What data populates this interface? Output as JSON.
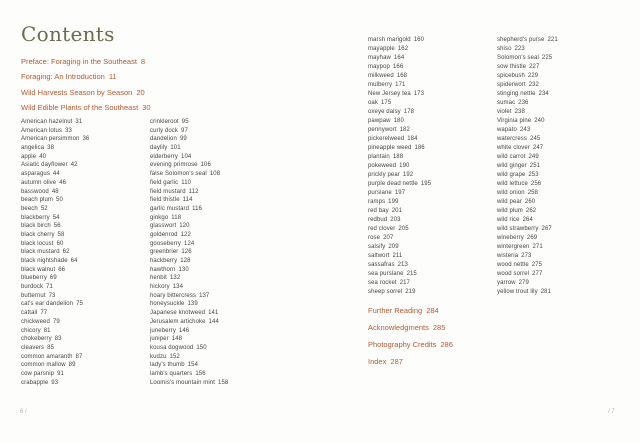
{
  "header": {
    "title": "Contents"
  },
  "front_sections": [
    {
      "label": "Preface: Foraging in the Southeast",
      "page": "8"
    },
    {
      "label": "Foraging: An Introduction",
      "page": "11"
    },
    {
      "label": "Wild Harvests Season by Season",
      "page": "20"
    },
    {
      "label": "Wild Edible Plants of the Southeast",
      "page": "30"
    }
  ],
  "columns": [
    [
      {
        "name": "American hazelnut",
        "page": "31"
      },
      {
        "name": "American lotus",
        "page": "33"
      },
      {
        "name": "American persimmon",
        "page": "36"
      },
      {
        "name": "angelica",
        "page": "38"
      },
      {
        "name": "apple",
        "page": "40"
      },
      {
        "name": "Asiatic dayflower",
        "page": "42"
      },
      {
        "name": "asparagus",
        "page": "44"
      },
      {
        "name": "autumn olive",
        "page": "46"
      },
      {
        "name": "basswood",
        "page": "48"
      },
      {
        "name": "beach plum",
        "page": "50"
      },
      {
        "name": "beech",
        "page": "52"
      },
      {
        "name": "blackberry",
        "page": "54"
      },
      {
        "name": "black birch",
        "page": "56"
      },
      {
        "name": "black cherry",
        "page": "58"
      },
      {
        "name": "black locust",
        "page": "60"
      },
      {
        "name": "black mustard",
        "page": "62"
      },
      {
        "name": "black nightshade",
        "page": "64"
      },
      {
        "name": "black walnut",
        "page": "66"
      },
      {
        "name": "blueberry",
        "page": "69"
      },
      {
        "name": "burdock",
        "page": "71"
      },
      {
        "name": "butternut",
        "page": "73"
      },
      {
        "name": "cat's ear dandelion",
        "page": "75"
      },
      {
        "name": "cattail",
        "page": "77"
      },
      {
        "name": "chickweed",
        "page": "79"
      },
      {
        "name": "chicory",
        "page": "81"
      },
      {
        "name": "chokeberry",
        "page": "83"
      },
      {
        "name": "cleavers",
        "page": "85"
      },
      {
        "name": "common amaranth",
        "page": "87"
      },
      {
        "name": "common mallow",
        "page": "89"
      },
      {
        "name": "cow parsnip",
        "page": "91"
      },
      {
        "name": "crabapple",
        "page": "93"
      }
    ],
    [
      {
        "name": "crinkleroot",
        "page": "95"
      },
      {
        "name": "curly dock",
        "page": "97"
      },
      {
        "name": "dandelion",
        "page": "99"
      },
      {
        "name": "daylily",
        "page": "101"
      },
      {
        "name": "elderberry",
        "page": "104"
      },
      {
        "name": "evening primrose",
        "page": "106"
      },
      {
        "name": "false Solomon's seal",
        "page": "108"
      },
      {
        "name": "field garlic",
        "page": "110"
      },
      {
        "name": "field mustard",
        "page": "112"
      },
      {
        "name": "field thistle",
        "page": "114"
      },
      {
        "name": "garlic mustard",
        "page": "116"
      },
      {
        "name": "ginkgo",
        "page": "118"
      },
      {
        "name": "glasswort",
        "page": "120"
      },
      {
        "name": "goldenrod",
        "page": "122"
      },
      {
        "name": "gooseberry",
        "page": "124"
      },
      {
        "name": "greenbrier",
        "page": "126"
      },
      {
        "name": "hackberry",
        "page": "128"
      },
      {
        "name": "hawthorn",
        "page": "130"
      },
      {
        "name": "henbit",
        "page": "132"
      },
      {
        "name": "hickory",
        "page": "134"
      },
      {
        "name": "hoary bittercress",
        "page": "137"
      },
      {
        "name": "honeysuckle",
        "page": "139"
      },
      {
        "name": "Japanese knotweed",
        "page": "141"
      },
      {
        "name": "Jerusalem artichoke",
        "page": "144"
      },
      {
        "name": "juneberry",
        "page": "146"
      },
      {
        "name": "juniper",
        "page": "148"
      },
      {
        "name": "kousa dogwood",
        "page": "150"
      },
      {
        "name": "kudzu",
        "page": "152"
      },
      {
        "name": "lady's thumb",
        "page": "154"
      },
      {
        "name": "lamb's quarters",
        "page": "156"
      },
      {
        "name": "Loomis's mountain mint",
        "page": "158"
      }
    ],
    [
      {
        "name": "marsh marigold",
        "page": "160"
      },
      {
        "name": "mayapple",
        "page": "162"
      },
      {
        "name": "mayhaw",
        "page": "164"
      },
      {
        "name": "maypop",
        "page": "166"
      },
      {
        "name": "milkweed",
        "page": "168"
      },
      {
        "name": "mulberry",
        "page": "171"
      },
      {
        "name": "New Jersey tea",
        "page": "173"
      },
      {
        "name": "oak",
        "page": "175"
      },
      {
        "name": "oxeye daisy",
        "page": "178"
      },
      {
        "name": "pawpaw",
        "page": "180"
      },
      {
        "name": "pennywort",
        "page": "182"
      },
      {
        "name": "pickerelweed",
        "page": "184"
      },
      {
        "name": "pineapple weed",
        "page": "186"
      },
      {
        "name": "plantain",
        "page": "188"
      },
      {
        "name": "pokeweed",
        "page": "190"
      },
      {
        "name": "prickly pear",
        "page": "192"
      },
      {
        "name": "purple dead nettle",
        "page": "195"
      },
      {
        "name": "purslane",
        "page": "197"
      },
      {
        "name": "ramps",
        "page": "199"
      },
      {
        "name": "red bay",
        "page": "201"
      },
      {
        "name": "redbud",
        "page": "203"
      },
      {
        "name": "red clover",
        "page": "205"
      },
      {
        "name": "rose",
        "page": "207"
      },
      {
        "name": "salsify",
        "page": "209"
      },
      {
        "name": "saltwort",
        "page": "211"
      },
      {
        "name": "sassafras",
        "page": "213"
      },
      {
        "name": "sea purslane",
        "page": "215"
      },
      {
        "name": "sea rocket",
        "page": "217"
      },
      {
        "name": "sheep sorrel",
        "page": "219"
      }
    ],
    [
      {
        "name": "shepherd's purse",
        "page": "221"
      },
      {
        "name": "shiso",
        "page": "223"
      },
      {
        "name": "Solomon's seal",
        "page": "225"
      },
      {
        "name": "sow thistle",
        "page": "227"
      },
      {
        "name": "spicebush",
        "page": "229"
      },
      {
        "name": "spiderwort",
        "page": "232"
      },
      {
        "name": "stinging nettle",
        "page": "234"
      },
      {
        "name": "sumac",
        "page": "236"
      },
      {
        "name": "violet",
        "page": "238"
      },
      {
        "name": "Virginia pine",
        "page": "240"
      },
      {
        "name": "wapato",
        "page": "243"
      },
      {
        "name": "watercress",
        "page": "245"
      },
      {
        "name": "white clover",
        "page": "247"
      },
      {
        "name": "wild carrot",
        "page": "249"
      },
      {
        "name": "wild ginger",
        "page": "251"
      },
      {
        "name": "wild grape",
        "page": "253"
      },
      {
        "name": "wild lettuce",
        "page": "256"
      },
      {
        "name": "wild onion",
        "page": "258"
      },
      {
        "name": "wild pear",
        "page": "260"
      },
      {
        "name": "wild plum",
        "page": "262"
      },
      {
        "name": "wild rice",
        "page": "264"
      },
      {
        "name": "wild strawberry",
        "page": "267"
      },
      {
        "name": "wineberry",
        "page": "269"
      },
      {
        "name": "wintergreen",
        "page": "271"
      },
      {
        "name": "wisteria",
        "page": "273"
      },
      {
        "name": "wood nettle",
        "page": "275"
      },
      {
        "name": "wood sorrel",
        "page": "277"
      },
      {
        "name": "yarrow",
        "page": "279"
      },
      {
        "name": "yellow trout lily",
        "page": "281"
      }
    ]
  ],
  "back_sections": [
    {
      "label": "Further Reading",
      "page": "284"
    },
    {
      "label": "Acknowledgments",
      "page": "285"
    },
    {
      "label": "Photography Credits",
      "page": "286"
    },
    {
      "label": "Index",
      "page": "287"
    }
  ],
  "footer": {
    "left_folio": "6 /",
    "right_folio": "/ 7"
  },
  "colors": {
    "accent": "#b45a33",
    "title_color": "#6b6b50",
    "body_color": "#454545",
    "folio_color": "#b3b3b3",
    "page_bg": "#fdfdfc"
  }
}
